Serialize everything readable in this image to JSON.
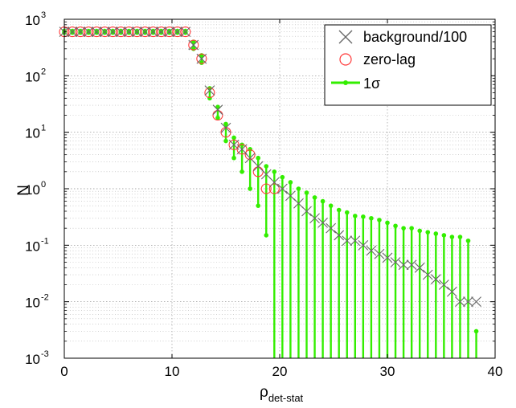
{
  "chart_data": {
    "type": "scatter",
    "title": "",
    "xlabel": "ρ",
    "xlabel_subscript": "det-stat",
    "ylabel": "N",
    "xlim": [
      0,
      40
    ],
    "ylim": [
      0.001,
      1000
    ],
    "yscale": "log",
    "grid": true,
    "legend_position": "top-right",
    "x_ticks": [
      0,
      10,
      20,
      30,
      40
    ],
    "y_ticks": [
      {
        "base": "10",
        "exp": "-3",
        "value": 0.001
      },
      {
        "base": "10",
        "exp": "-2",
        "value": 0.01
      },
      {
        "base": "10",
        "exp": "-1",
        "value": 0.1
      },
      {
        "base": "10",
        "exp": "0",
        "value": 1
      },
      {
        "base": "10",
        "exp": "1",
        "value": 10
      },
      {
        "base": "10",
        "exp": "2",
        "value": 100
      },
      {
        "base": "10",
        "exp": "3",
        "value": 1000
      }
    ],
    "series": [
      {
        "name": "background/100",
        "marker": "x",
        "color": "#666666",
        "x": [
          0,
          0.75,
          1.5,
          2.25,
          3,
          3.75,
          4.5,
          5.25,
          6,
          6.75,
          7.5,
          8.25,
          9,
          9.75,
          10.5,
          11.25,
          12,
          12.75,
          13.5,
          14.25,
          15,
          15.75,
          16.5,
          17.25,
          18,
          18.75,
          19.5,
          20.25,
          21,
          21.75,
          22.5,
          23.25,
          24,
          24.75,
          25.5,
          26.25,
          27,
          27.75,
          28.5,
          29.25,
          30,
          30.75,
          31.5,
          32.25,
          33,
          33.75,
          34.5,
          35.25,
          36,
          36.75,
          37.5,
          38.25
        ],
        "y": [
          600,
          600,
          600,
          600,
          600,
          600,
          600,
          600,
          600,
          600,
          600,
          600,
          600,
          600,
          600,
          600,
          350,
          200,
          55,
          25,
          12,
          6,
          5,
          3.5,
          2.5,
          1.8,
          1.3,
          1,
          0.75,
          0.55,
          0.4,
          0.3,
          0.25,
          0.2,
          0.15,
          0.12,
          0.12,
          0.1,
          0.08,
          0.07,
          0.06,
          0.05,
          0.045,
          0.045,
          0.04,
          0.03,
          0.025,
          0.02,
          0.015,
          0.01,
          0.01,
          0.01
        ]
      },
      {
        "name": "zero-lag",
        "marker": "o",
        "color": "#ff3b3b",
        "x": [
          0,
          0.75,
          1.5,
          2.25,
          3,
          3.75,
          4.5,
          5.25,
          6,
          6.75,
          7.5,
          8.25,
          9,
          9.75,
          10.5,
          11.25,
          12,
          12.75,
          13.5,
          14.25,
          15,
          15.75,
          16.5,
          17.25,
          18,
          18.75,
          19.5
        ],
        "y": [
          600,
          600,
          600,
          600,
          600,
          600,
          600,
          600,
          600,
          600,
          600,
          600,
          600,
          600,
          600,
          600,
          350,
          200,
          50,
          20,
          10,
          6,
          5,
          4,
          2,
          1,
          1
        ]
      },
      {
        "name": "1σ",
        "marker": "errorbar",
        "color": "#33ee00",
        "x": [
          0,
          0.75,
          1.5,
          2.25,
          3,
          3.75,
          4.5,
          5.25,
          6,
          6.75,
          7.5,
          8.25,
          9,
          9.75,
          10.5,
          11.25,
          12,
          12.75,
          13.5,
          14.25,
          15,
          15.75,
          16.5,
          17.25,
          18,
          18.75,
          19.5,
          20.25,
          21,
          21.75,
          22.5,
          23.25,
          24,
          24.75,
          25.5,
          26.25,
          27,
          27.75,
          28.5,
          29.25,
          30,
          30.75,
          31.5,
          32.25,
          33,
          33.75,
          34.5,
          35.25,
          36,
          36.75,
          37.5,
          38.25
        ],
        "upper": [
          620,
          620,
          620,
          620,
          620,
          620,
          620,
          620,
          620,
          620,
          620,
          620,
          620,
          620,
          620,
          620,
          400,
          230,
          60,
          28,
          14,
          8,
          6,
          5,
          3.5,
          2.5,
          2,
          1.6,
          1.3,
          1,
          0.85,
          0.7,
          0.6,
          0.5,
          0.42,
          0.38,
          0.33,
          0.32,
          0.3,
          0.28,
          0.25,
          0.22,
          0.2,
          0.2,
          0.18,
          0.17,
          0.16,
          0.15,
          0.14,
          0.14,
          0.12,
          0.003
        ],
        "lower": [
          580,
          580,
          580,
          580,
          580,
          580,
          580,
          580,
          580,
          580,
          580,
          580,
          580,
          580,
          580,
          580,
          300,
          170,
          40,
          18,
          7,
          3.5,
          2,
          1,
          0.5,
          0.15,
          0.001,
          0.001,
          0.001,
          0.001,
          0.001,
          0.001,
          0.001,
          0.001,
          0.001,
          0.001,
          0.001,
          0.001,
          0.001,
          0.001,
          0.001,
          0.001,
          0.001,
          0.001,
          0.001,
          0.001,
          0.001,
          0.001,
          0.001,
          0.001,
          0.001,
          0.001
        ]
      }
    ]
  }
}
